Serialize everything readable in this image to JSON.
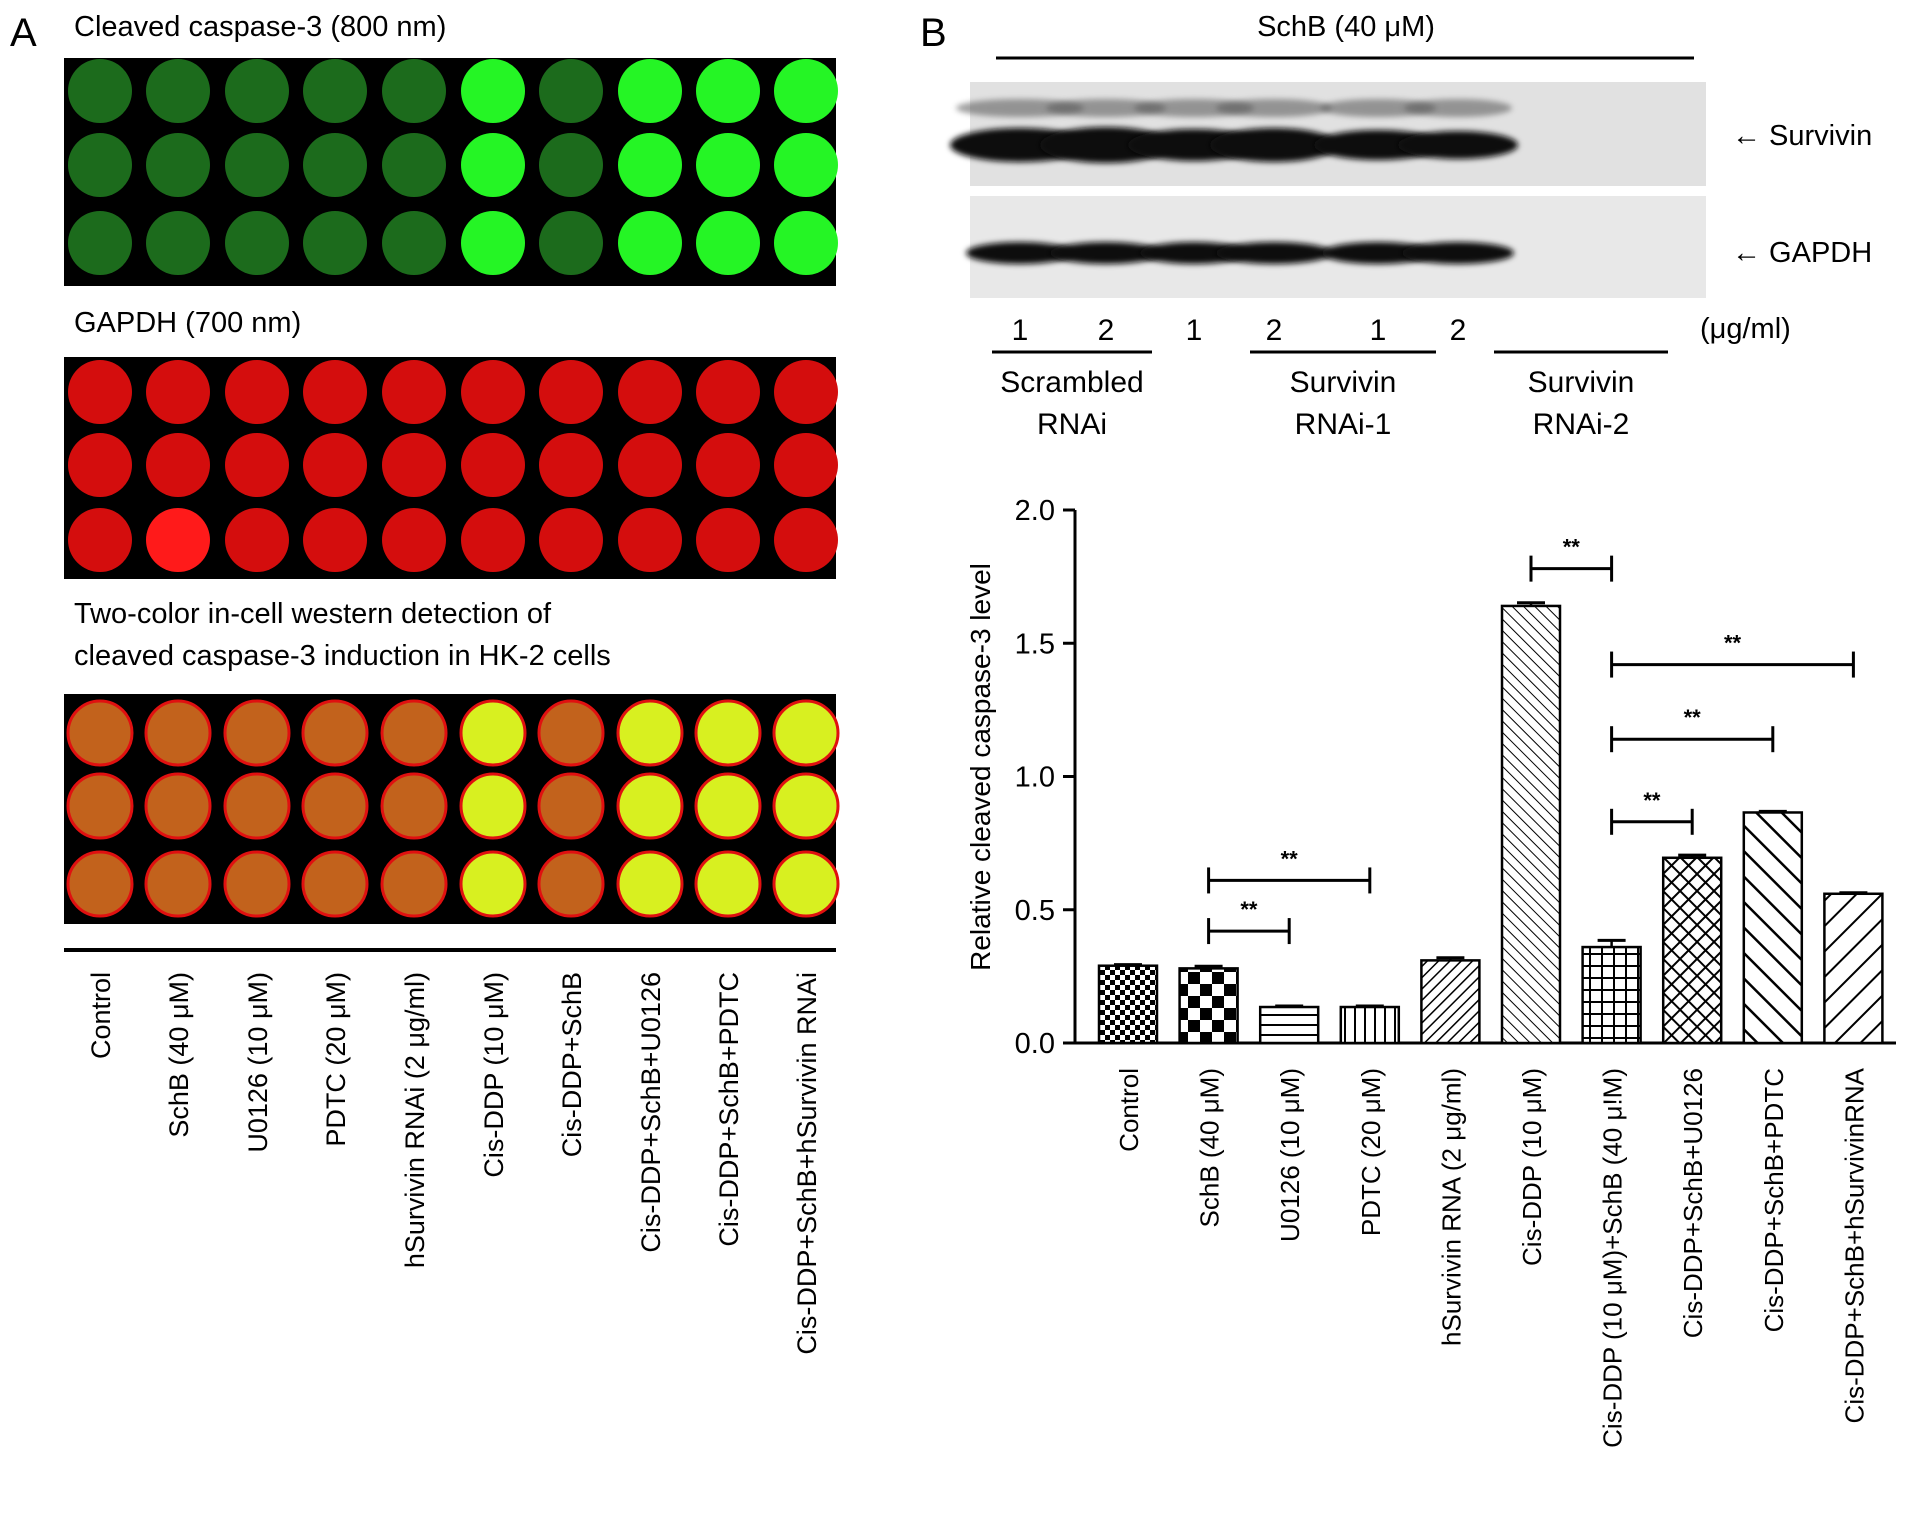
{
  "panel_a": {
    "letter": "A",
    "titles": {
      "cleaved": "Cleaved caspase-3 (800 nm)",
      "gapdh": "GAPDH (700 nm)",
      "merge_line1": "Two-color in-cell western detection of",
      "merge_line2": "cleaved caspase-3 induction in HK-2 cells"
    },
    "columns": [
      "Control",
      "SchB (40 μM)",
      "U0126 (10 μM)",
      "PDTC (20 μM)",
      "hSurvivin RNAi (2 μg/ml)",
      "Cis-DDP (10 μM)",
      "Cis-DDP+SchB",
      "Cis-DDP+SchB+U0126",
      "Cis-DDP+SchB+PDTC",
      "Cis-DDP+SchB+hSurvivin RNAi"
    ],
    "colors": {
      "green_dim": "#1c6b1c",
      "green_bright": "#25f525",
      "red": "#d40d0d",
      "red_bright": "#ff1a1a",
      "merge_dim": "#c2621c",
      "merge_bright": "#d8f020"
    }
  },
  "panel_b_blot": {
    "letter": "B",
    "treatment": "SchB (40 μM)",
    "band_labels": [
      "← Survivin",
      "← GAPDH"
    ],
    "lane_numbers": [
      "1",
      "2",
      "1",
      "2",
      "1",
      "2"
    ],
    "unit": "(μg/ml)",
    "groups": [
      {
        "line1": "Scrambled",
        "line2": "RNAi"
      },
      {
        "line1": "Survivin",
        "line2": "RNAi-1"
      },
      {
        "line1": "Survivin",
        "line2": "RNAi-2"
      }
    ]
  },
  "chart_data": {
    "type": "bar",
    "ylabel": "Relative cleaved caspase-3 level",
    "ylim": [
      0,
      2.0
    ],
    "yticks": [
      "0.0",
      "0.5",
      "1.0",
      "1.5",
      "2.0"
    ],
    "categories": [
      "Control",
      "SchB (40 μM)",
      "U0126 (10 μM)",
      "PDTC (20 μM)",
      "hSurvivin RNA (2 μg/ml)",
      "Cis-DDP (10 μM)",
      "Cis-DDP (10 μM)+SchB (40 μ!M)",
      "Cis-DDP+SchB+U0126",
      "Cis-DDP+SchB+PDTC",
      "Cis-DDP+SchB+hSurvivinRNA"
    ],
    "values": [
      0.29,
      0.28,
      0.135,
      0.135,
      0.31,
      1.64,
      0.36,
      0.695,
      0.865,
      0.56
    ],
    "errors": [
      0.004,
      0.008,
      0.004,
      0.004,
      0.01,
      0.012,
      0.025,
      0.01,
      0.004,
      0.004
    ],
    "significance": [
      {
        "from": 1,
        "to": 2,
        "y": 0.42,
        "label": "**"
      },
      {
        "from": 1,
        "to": 3,
        "y": 0.61,
        "label": "**"
      },
      {
        "from": 5,
        "to": 6,
        "y": 1.78,
        "label": "**"
      },
      {
        "from": 6,
        "to": 7,
        "y": 0.83,
        "label": "**"
      },
      {
        "from": 6,
        "to": 8,
        "y": 1.14,
        "label": "**"
      },
      {
        "from": 6,
        "to": 9,
        "y": 1.42,
        "label": "**"
      }
    ]
  }
}
